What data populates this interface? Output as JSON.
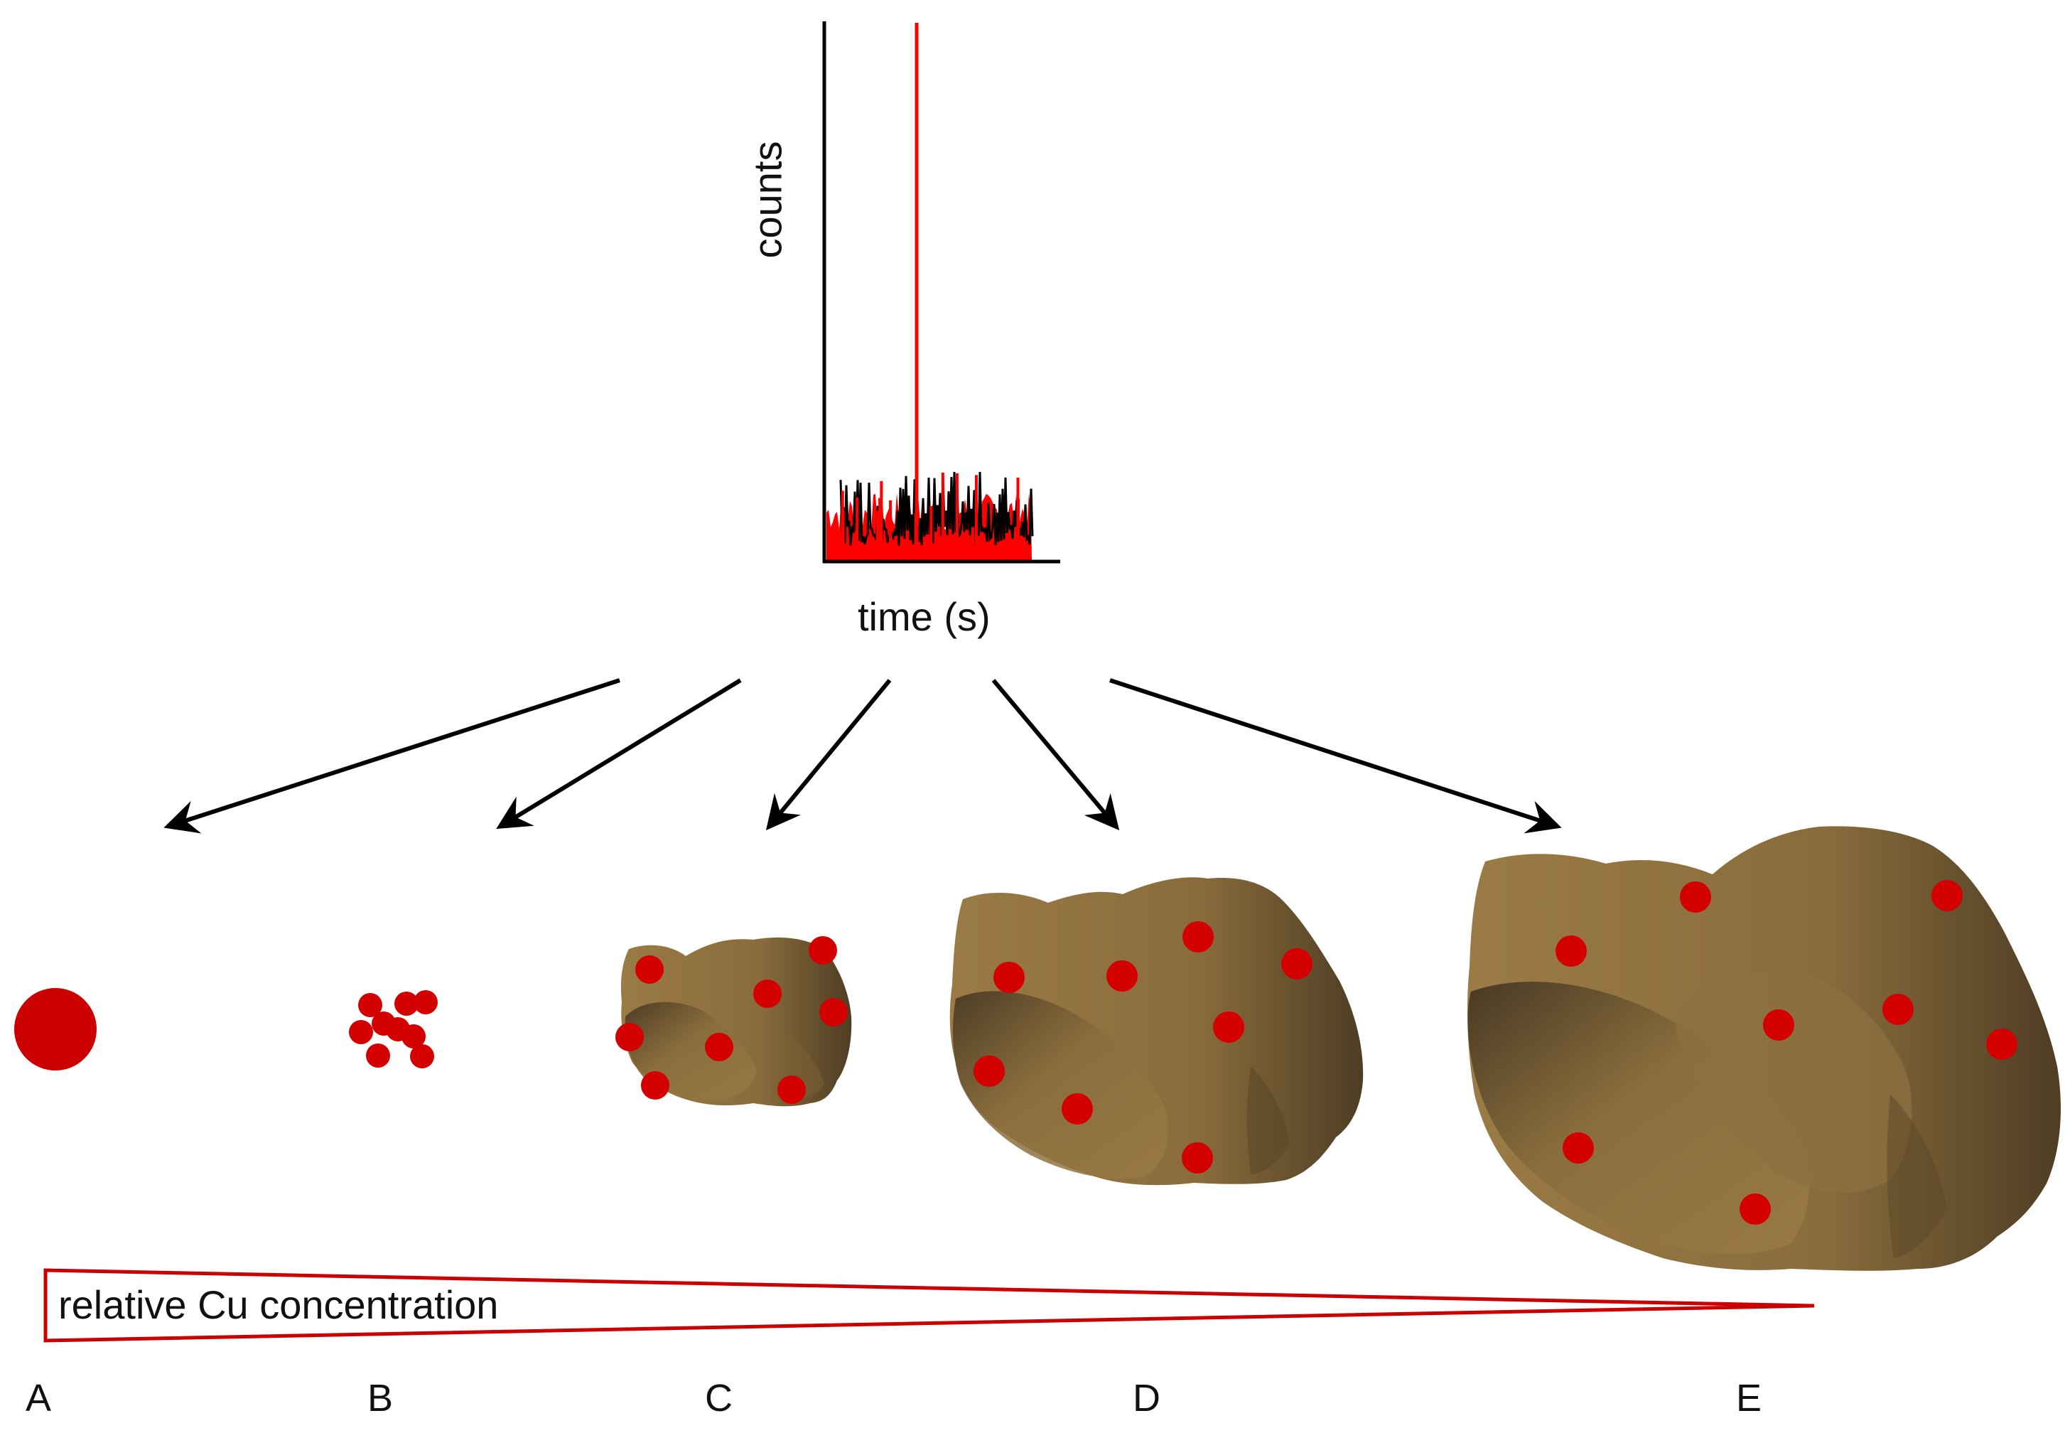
{
  "inset_plot": {
    "y_axis_label": "counts",
    "x_axis_label": "time (s)",
    "colors": {
      "signal": "#ff0000",
      "background": "#000000",
      "axis": "#000000"
    }
  },
  "wedge": {
    "label": "relative Cu concentration",
    "color": "#cc0000"
  },
  "panels": [
    {
      "id": "A",
      "label": "A",
      "description_icon": "single-cu-particle-icon"
    },
    {
      "id": "B",
      "label": "B",
      "description_icon": "cu-cluster-icon"
    },
    {
      "id": "C",
      "label": "C",
      "description_icon": "small-aggregate-icon"
    },
    {
      "id": "D",
      "label": "D",
      "description_icon": "medium-aggregate-icon"
    },
    {
      "id": "E",
      "label": "E",
      "description_icon": "large-aggregate-icon"
    }
  ],
  "colors": {
    "cu_dot": "#d40000",
    "particle_light": "#9a7b45",
    "particle_dark": "#4a3a22",
    "arrow": "#000000"
  }
}
